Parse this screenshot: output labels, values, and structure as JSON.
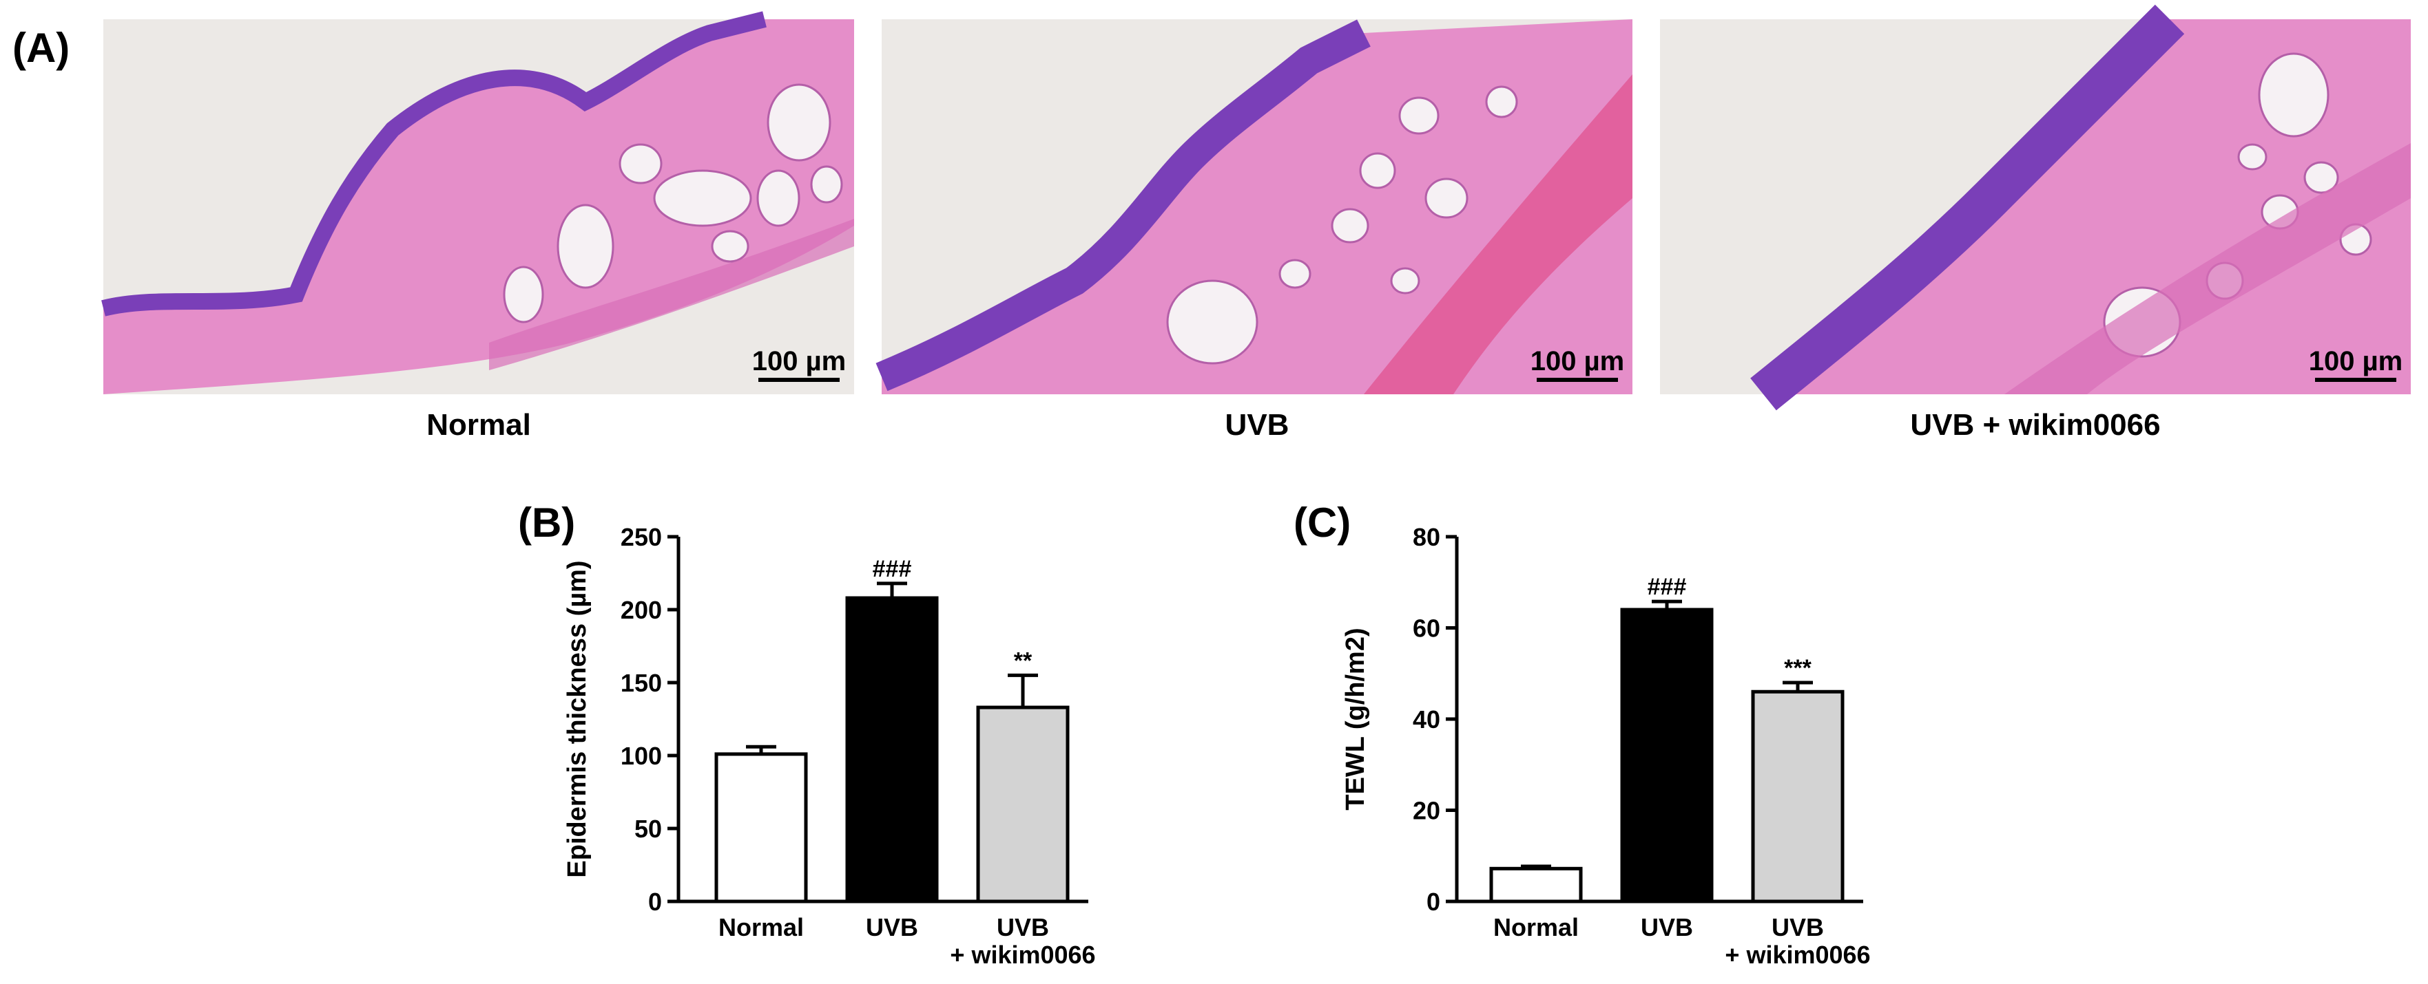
{
  "panel_a": {
    "letter": "(A)",
    "scale_bar_label": "100 µm",
    "captions": [
      "Normal",
      "UVB",
      "UVB + wikim0066"
    ]
  },
  "colors": {
    "background_slide": "#ece9e6",
    "tissue_pink": "#e58ec9",
    "epidermis_purple": "#7a3fb8",
    "bar_normal": "#ffffff",
    "bar_uvb": "#000000",
    "bar_treated": "#d3d3d3"
  },
  "chart_data": [
    {
      "panel": "(B)",
      "type": "bar",
      "ylabel": "Epidermis thickness (µm)",
      "ylim": [
        0,
        250
      ],
      "yticks": [
        "0",
        "50",
        "100",
        "150",
        "200",
        "250"
      ],
      "categories": [
        [
          "Normal"
        ],
        [
          "UVB"
        ],
        [
          "UVB",
          "+ wikim0066"
        ]
      ],
      "values": [
        101,
        208,
        133
      ],
      "errors": [
        5,
        10,
        22
      ],
      "annotations": [
        "",
        "###",
        "**"
      ]
    },
    {
      "panel": "(C)",
      "type": "bar",
      "ylabel": "TEWL (g/h/m2)",
      "ylim": [
        0,
        80
      ],
      "yticks": [
        "0",
        "20",
        "40",
        "60",
        "80"
      ],
      "categories": [
        [
          "Normal"
        ],
        [
          "UVB"
        ],
        [
          "UVB",
          "+ wikim0066"
        ]
      ],
      "values": [
        7.2,
        64,
        46
      ],
      "errors": [
        0.5,
        1.8,
        2.0
      ],
      "annotations": [
        "",
        "###",
        "***"
      ]
    }
  ]
}
